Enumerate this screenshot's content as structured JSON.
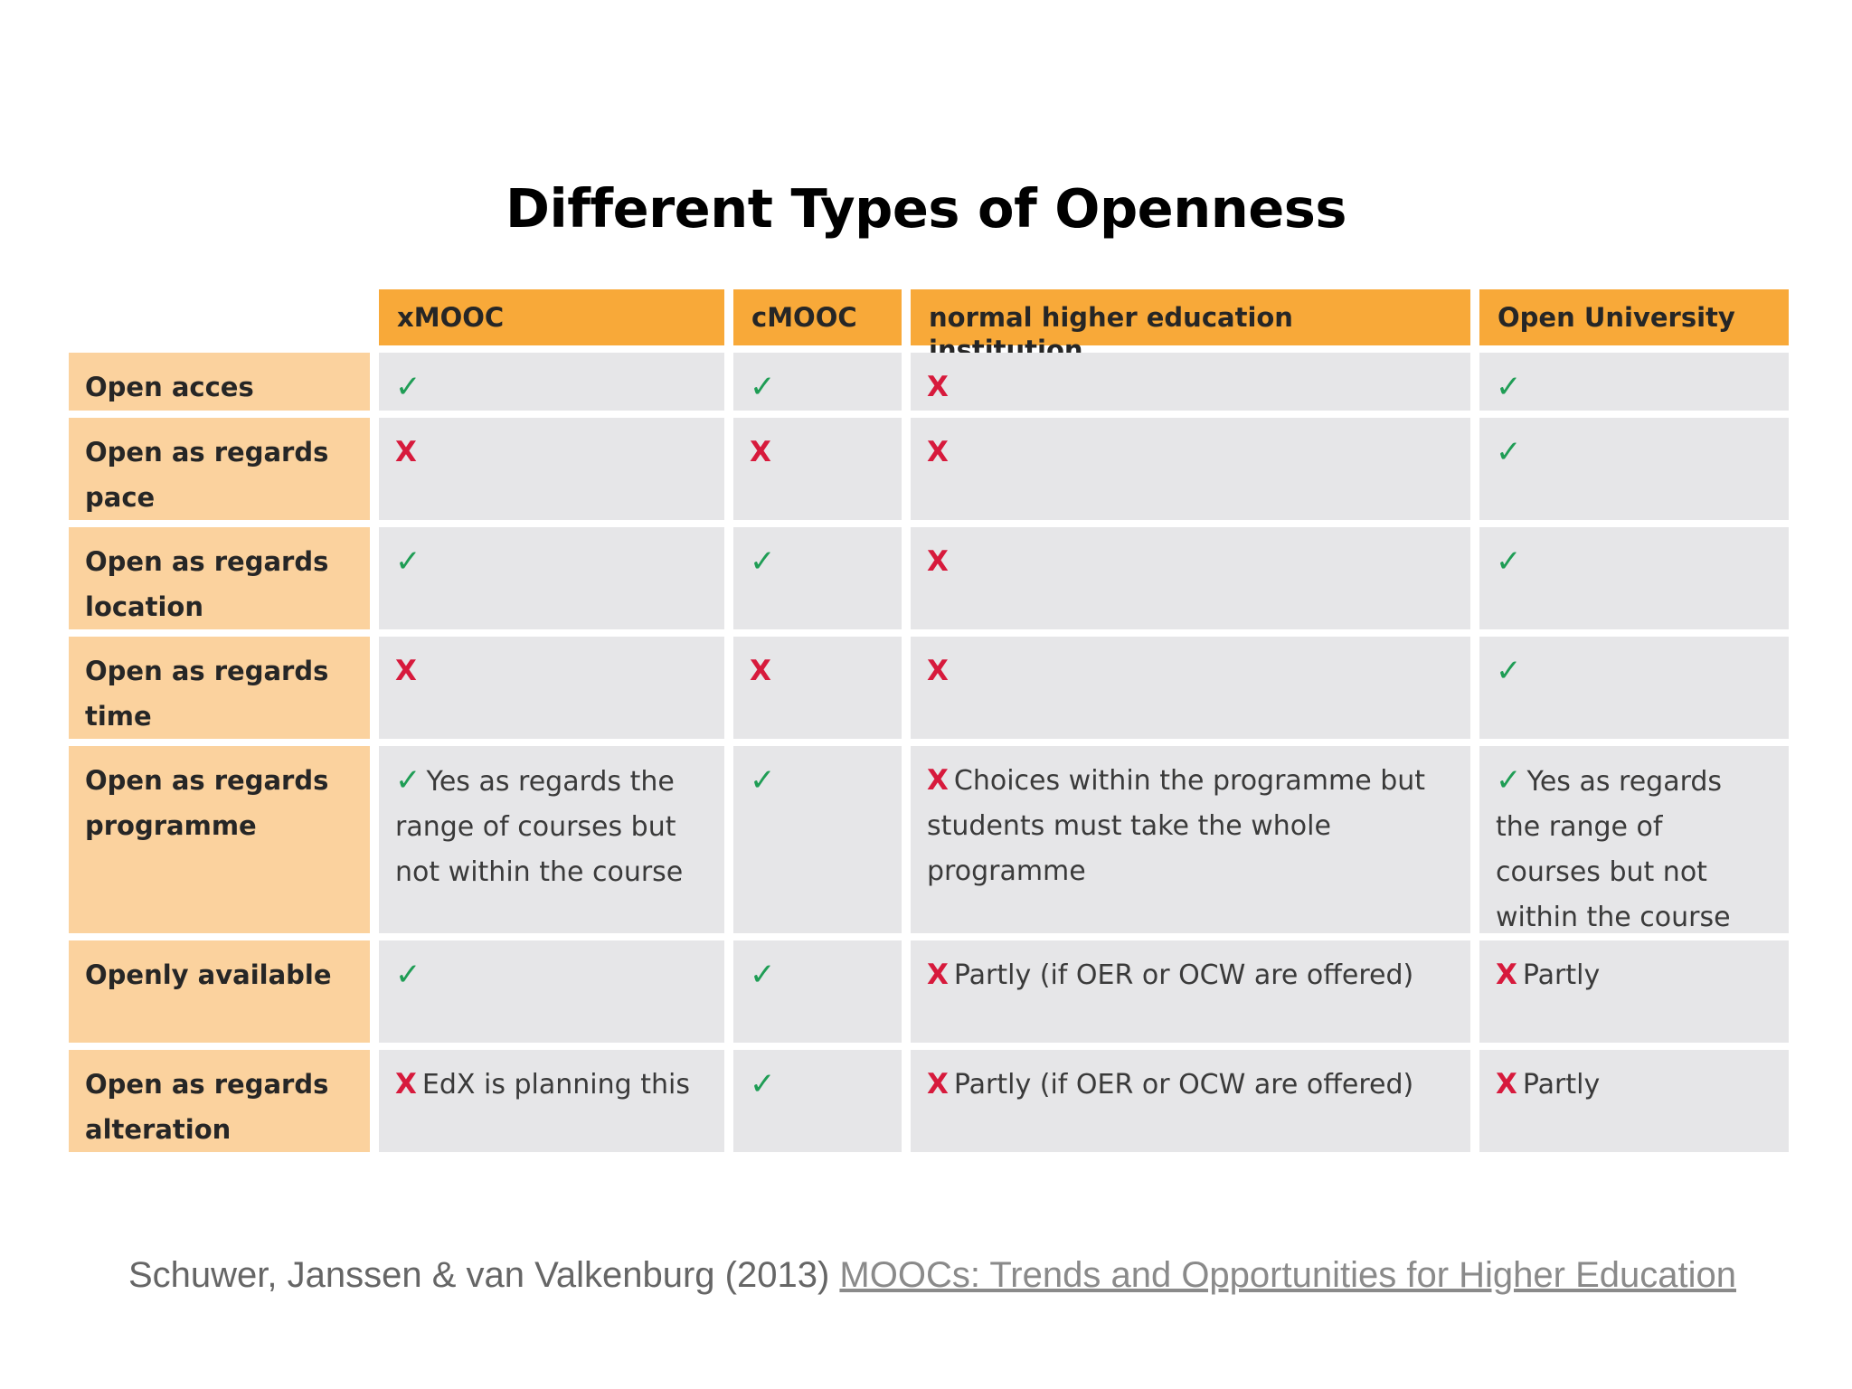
{
  "slide": {
    "title": "Different Types of Openness"
  },
  "table": {
    "columns": [
      "xMOOC",
      "cMOOC",
      "normal higher education institution",
      "Open University"
    ],
    "rows": [
      {
        "label": "Open acces",
        "cells": [
          {
            "mark": "check",
            "symbol": "✓",
            "text": ""
          },
          {
            "mark": "check",
            "symbol": "✓",
            "text": ""
          },
          {
            "mark": "cross",
            "symbol": "X",
            "text": ""
          },
          {
            "mark": "check",
            "symbol": "✓",
            "text": ""
          }
        ]
      },
      {
        "label": "Open as regards pace",
        "cells": [
          {
            "mark": "cross",
            "symbol": "X",
            "text": ""
          },
          {
            "mark": "cross",
            "symbol": "X",
            "text": ""
          },
          {
            "mark": "cross",
            "symbol": "X",
            "text": ""
          },
          {
            "mark": "check",
            "symbol": "✓",
            "text": ""
          }
        ]
      },
      {
        "label": "Open as regards location",
        "cells": [
          {
            "mark": "check",
            "symbol": "✓",
            "text": ""
          },
          {
            "mark": "check",
            "symbol": "✓",
            "text": ""
          },
          {
            "mark": "cross",
            "symbol": "X",
            "text": ""
          },
          {
            "mark": "check",
            "symbol": "✓",
            "text": ""
          }
        ]
      },
      {
        "label": "Open as regards time",
        "cells": [
          {
            "mark": "cross",
            "symbol": "X",
            "text": ""
          },
          {
            "mark": "cross",
            "symbol": "X",
            "text": ""
          },
          {
            "mark": "cross",
            "symbol": "X",
            "text": ""
          },
          {
            "mark": "check",
            "symbol": "✓",
            "text": ""
          }
        ]
      },
      {
        "label": "Open as regards programme",
        "cells": [
          {
            "mark": "check",
            "symbol": "✓",
            "text": "Yes as regards the range of courses but not within the course"
          },
          {
            "mark": "check",
            "symbol": "✓",
            "text": ""
          },
          {
            "mark": "cross",
            "symbol": "X",
            "text": "Choices within the programme but students must take the whole programme"
          },
          {
            "mark": "check",
            "symbol": "✓",
            "text": "Yes as regards the range of courses but not within the course"
          }
        ]
      },
      {
        "label": "Openly available",
        "cells": [
          {
            "mark": "check",
            "symbol": "✓",
            "text": ""
          },
          {
            "mark": "check",
            "symbol": "✓",
            "text": ""
          },
          {
            "mark": "cross",
            "symbol": "X",
            "text": "Partly (if OER or OCW are offered)"
          },
          {
            "mark": "cross",
            "symbol": "X",
            "text": "Partly"
          }
        ]
      },
      {
        "label": "Open as regards alteration",
        "cells": [
          {
            "mark": "cross",
            "symbol": "X",
            "text": "EdX is planning this"
          },
          {
            "mark": "check",
            "symbol": "✓",
            "text": ""
          },
          {
            "mark": "cross",
            "symbol": "X",
            "text": "Partly (if OER or OCW are offered)"
          },
          {
            "mark": "cross",
            "symbol": "X",
            "text": "Partly"
          }
        ]
      }
    ]
  },
  "citation": {
    "text": "Schuwer, Janssen & van Valkenburg (2013)",
    "link_text": "MOOCs: Trends and Opportunities for Higher Education"
  },
  "colors": {
    "header_bg": "#f8a939",
    "row_header_bg": "#fbd29e",
    "cell_bg": "#e6e6e8",
    "check": "#1f9d55",
    "cross": "#d71a3c"
  }
}
